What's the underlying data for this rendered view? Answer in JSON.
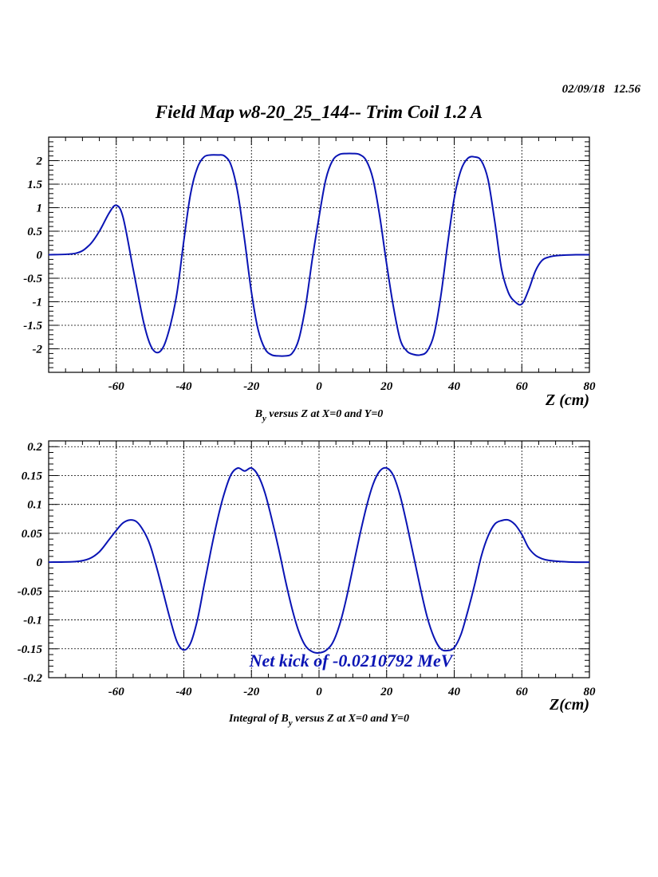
{
  "header": {
    "date": "02/09/18",
    "time": "12.56",
    "title": "Field Map w8-20_25_144-- Trim Coil 1.2 A"
  },
  "colors": {
    "series": "#0a14b4",
    "grid": "#000000",
    "frame": "#000000"
  },
  "chart_data": [
    {
      "type": "line",
      "xlabel": "Z (cm)",
      "ylabel": "",
      "caption_main": "B",
      "caption_sub": "y",
      "caption_rest": " versus Z at X=0 and Y=0",
      "xlim": [
        -80,
        80
      ],
      "ylim": [
        -2.5,
        2.5
      ],
      "xticks": [
        -60,
        -40,
        -20,
        0,
        20,
        40,
        60,
        80
      ],
      "xtick_labels": [
        "-60",
        "-40",
        "-20",
        "0",
        "20",
        "40",
        "60",
        "80"
      ],
      "yticks": [
        -2,
        -1.5,
        -1,
        -0.5,
        0,
        0.5,
        1,
        1.5,
        2
      ],
      "ytick_labels": [
        "-2",
        "-1.5",
        "-1",
        "-0.5",
        "0",
        "0.5",
        "1",
        "1.5",
        "2"
      ],
      "grid": true,
      "series": [
        {
          "x": [
            -80,
            -72,
            -68,
            -65,
            -62,
            -60,
            -58,
            -55,
            -52,
            -50,
            -48,
            -46,
            -44,
            -42,
            -40,
            -38,
            -36,
            -34,
            -32,
            -30,
            -28,
            -26,
            -24,
            -22,
            -20,
            -18,
            -16,
            -14,
            -12,
            -10,
            -8,
            -6,
            -4,
            -2,
            0,
            2,
            4,
            6,
            8,
            10,
            12,
            14,
            16,
            18,
            20,
            22,
            24,
            26,
            28,
            30,
            32,
            34,
            36,
            38,
            40,
            42,
            44,
            46,
            48,
            50,
            52,
            54,
            56,
            58,
            60,
            62,
            64,
            66,
            68,
            70,
            72,
            76,
            80
          ],
          "y": [
            0,
            0.03,
            0.2,
            0.5,
            0.9,
            1.05,
            0.8,
            -0.3,
            -1.4,
            -1.9,
            -2.08,
            -1.95,
            -1.5,
            -0.8,
            0.3,
            1.3,
            1.85,
            2.08,
            2.12,
            2.12,
            2.1,
            1.9,
            1.3,
            0.3,
            -0.8,
            -1.6,
            -2.0,
            -2.13,
            -2.15,
            -2.15,
            -2.1,
            -1.8,
            -1.1,
            -0.1,
            0.8,
            1.6,
            2.0,
            2.13,
            2.15,
            2.15,
            2.13,
            2.0,
            1.6,
            0.8,
            -0.2,
            -1.1,
            -1.8,
            -2.05,
            -2.12,
            -2.13,
            -2.05,
            -1.7,
            -0.9,
            0.2,
            1.2,
            1.8,
            2.05,
            2.08,
            2.0,
            1.6,
            0.7,
            -0.3,
            -0.8,
            -1.0,
            -1.05,
            -0.75,
            -0.35,
            -0.12,
            -0.05,
            -0.02,
            -0.01,
            0,
            0
          ]
        }
      ]
    },
    {
      "type": "line",
      "xlabel": "Z(cm)",
      "ylabel": "",
      "caption_main": "Integral of B",
      "caption_sub": "y",
      "caption_rest": " versus Z at X=0 and Y=0",
      "annotation": "Net kick of -0.0210792 MeV",
      "xlim": [
        -80,
        80
      ],
      "ylim": [
        -0.2,
        0.21
      ],
      "xticks": [
        -60,
        -40,
        -20,
        0,
        20,
        40,
        60,
        80
      ],
      "xtick_labels": [
        "-60",
        "-40",
        "-20",
        "0",
        "20",
        "40",
        "60",
        "80"
      ],
      "yticks": [
        -0.2,
        -0.15,
        -0.1,
        -0.05,
        0,
        0.05,
        0.1,
        0.15,
        0.2
      ],
      "ytick_labels": [
        "-0.2",
        "-0.15",
        "-0.1",
        "-0.05",
        "0",
        "0.05",
        "0.1",
        "0.15",
        "0.2"
      ],
      "grid": true,
      "series": [
        {
          "x": [
            -80,
            -72,
            -68,
            -65,
            -62,
            -60,
            -58,
            -56,
            -54,
            -52,
            -50,
            -48,
            -46,
            -44,
            -42,
            -40,
            -38,
            -36,
            -34,
            -32,
            -30,
            -28,
            -26,
            -24,
            -22,
            -20,
            -18,
            -16,
            -14,
            -12,
            -10,
            -8,
            -6,
            -4,
            -2,
            0,
            2,
            4,
            6,
            8,
            10,
            12,
            14,
            16,
            18,
            20,
            22,
            24,
            26,
            28,
            30,
            32,
            34,
            36,
            38,
            40,
            42,
            44,
            46,
            48,
            50,
            52,
            54,
            56,
            58,
            60,
            62,
            64,
            66,
            68,
            72,
            76,
            80
          ],
          "y": [
            0,
            0.001,
            0.006,
            0.018,
            0.04,
            0.055,
            0.068,
            0.073,
            0.07,
            0.055,
            0.03,
            -0.01,
            -0.055,
            -0.1,
            -0.138,
            -0.152,
            -0.14,
            -0.1,
            -0.04,
            0.02,
            0.075,
            0.12,
            0.152,
            0.163,
            0.158,
            0.163,
            0.15,
            0.12,
            0.075,
            0.025,
            -0.03,
            -0.08,
            -0.12,
            -0.145,
            -0.155,
            -0.157,
            -0.153,
            -0.14,
            -0.11,
            -0.065,
            -0.01,
            0.045,
            0.095,
            0.135,
            0.158,
            0.163,
            0.15,
            0.115,
            0.065,
            0.01,
            -0.045,
            -0.095,
            -0.13,
            -0.15,
            -0.153,
            -0.148,
            -0.125,
            -0.085,
            -0.04,
            0.01,
            0.045,
            0.066,
            0.072,
            0.073,
            0.065,
            0.048,
            0.025,
            0.012,
            0.006,
            0.003,
            0.001,
            0,
            0
          ]
        }
      ]
    }
  ]
}
